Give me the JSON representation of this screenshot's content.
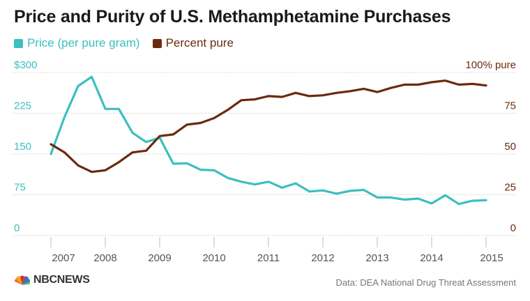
{
  "title": "Price and Purity of U.S. Methamphetamine Purchases",
  "source": "Data: DEA National Drug Threat Assessment",
  "logo_text": "NBCNEWS",
  "colors": {
    "price": "#3bbfbf",
    "purity": "#6b2a0e",
    "grid": "#d4d4d4",
    "axis_text": "#888888"
  },
  "chart_data": {
    "type": "line",
    "x_ticks": [
      "2007",
      "2008",
      "2009",
      "2010",
      "2011",
      "2012",
      "2013",
      "2014",
      "2015"
    ],
    "left_axis": {
      "ticks": [
        "0",
        "75",
        "150",
        "225",
        "$300"
      ],
      "range": [
        0,
        300
      ],
      "color": "#3bbfbf"
    },
    "right_axis": {
      "ticks": [
        "0",
        "25",
        "50",
        "75",
        "100% pure"
      ],
      "range": [
        0,
        100
      ],
      "color": "#6b2a0e"
    },
    "grid": true,
    "series": [
      {
        "name": "Price (per pure gram)",
        "axis": "left",
        "x": [
          2007.0,
          2007.25,
          2007.5,
          2007.75,
          2008.0,
          2008.25,
          2008.5,
          2008.75,
          2009.0,
          2009.25,
          2009.5,
          2009.75,
          2010.0,
          2010.25,
          2010.5,
          2010.75,
          2011.0,
          2011.25,
          2011.5,
          2011.75,
          2012.0,
          2012.25,
          2012.5,
          2012.75,
          2013.0,
          2013.25,
          2013.5,
          2013.75,
          2014.0,
          2014.25,
          2014.5,
          2014.75,
          2015.0
        ],
        "values": [
          150,
          218,
          275,
          292,
          233,
          233,
          189,
          172,
          180,
          132,
          133,
          121,
          120,
          106,
          99,
          94,
          99,
          88,
          96,
          81,
          83,
          77,
          82,
          84,
          70,
          70,
          66,
          68,
          59,
          74,
          58,
          64,
          65
        ]
      },
      {
        "name": "Percent pure",
        "axis": "right",
        "x": [
          2007.0,
          2007.25,
          2007.5,
          2007.75,
          2008.0,
          2008.25,
          2008.5,
          2008.75,
          2009.0,
          2009.25,
          2009.5,
          2009.75,
          2010.0,
          2010.25,
          2010.5,
          2010.75,
          2011.0,
          2011.25,
          2011.5,
          2011.75,
          2012.0,
          2012.25,
          2012.5,
          2012.75,
          2013.0,
          2013.25,
          2013.5,
          2013.75,
          2014.0,
          2014.25,
          2014.5,
          2014.75,
          2015.0
        ],
        "values": [
          56,
          51,
          43,
          39,
          40,
          45,
          51,
          52,
          61,
          62,
          68,
          69,
          72,
          77,
          83,
          83.5,
          85.5,
          85,
          87.5,
          85.5,
          86,
          87.5,
          88.5,
          90,
          88,
          90.5,
          92.5,
          92.5,
          94,
          95,
          92.5,
          93,
          92
        ]
      }
    ]
  }
}
